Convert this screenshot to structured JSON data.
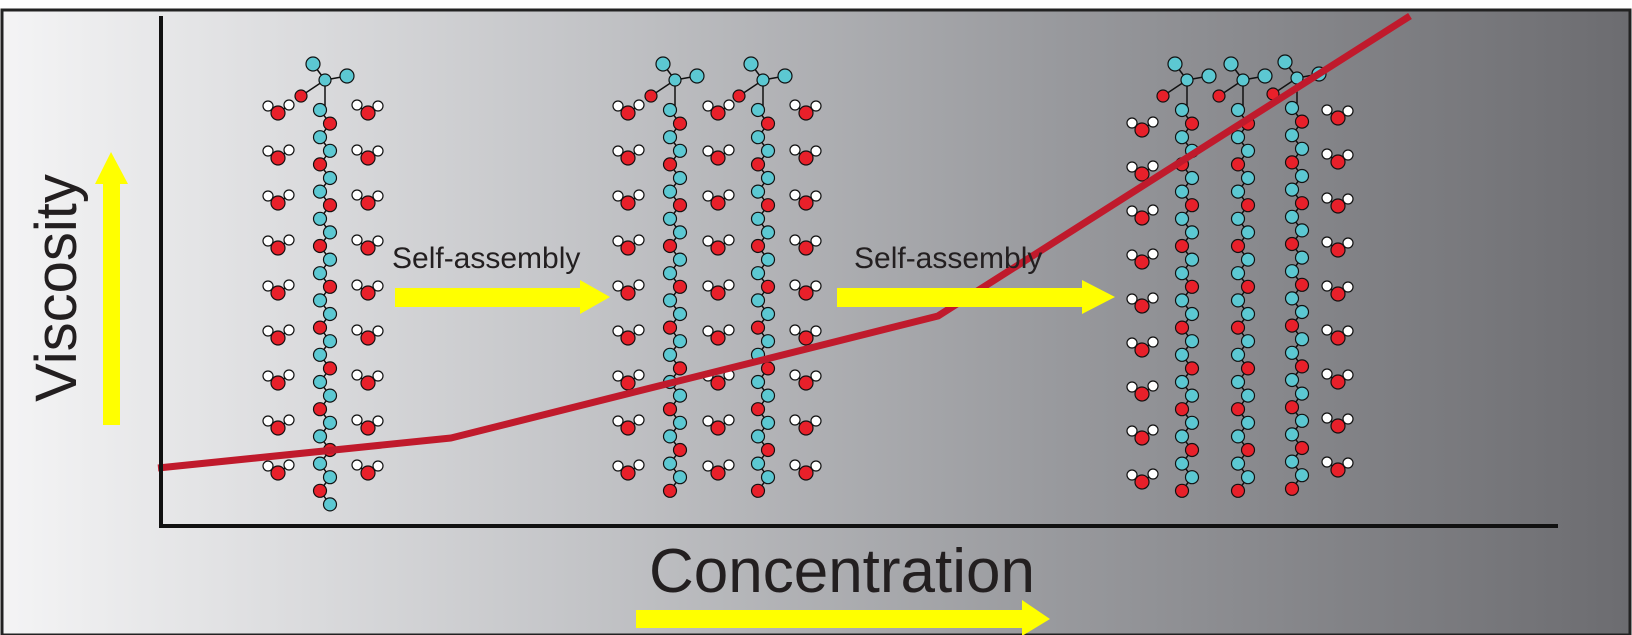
{
  "labels": {
    "y_axis": "Viscosity",
    "x_axis": "Concentration",
    "step_1": "Self-assembly",
    "step_2": "Self-assembly"
  },
  "colors": {
    "background_light": "#f3f3f4",
    "background_dark": "#6f6f73",
    "arrow": "#ffff00",
    "curve": "#c01a2c",
    "oxygen": "#e8202a",
    "hydrogen": "#ffffff",
    "chain_bead": "#5cc8d2"
  },
  "stages": [
    {
      "name": "single molecule",
      "surfactant_chains": 1
    },
    {
      "name": "two molecules",
      "surfactant_chains": 2
    },
    {
      "name": "assembled network",
      "surfactant_chains": 3
    }
  ]
}
